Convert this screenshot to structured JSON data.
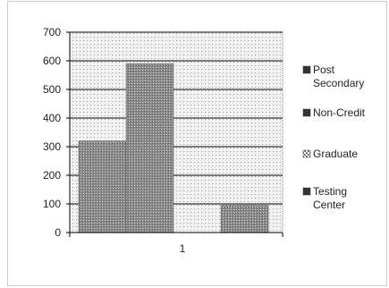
{
  "chart_data": {
    "type": "bar",
    "categories": [
      "1"
    ],
    "series": [
      {
        "name": "Post Secondary",
        "values": [
          320
        ]
      },
      {
        "name": "Non-Credit",
        "values": [
          590
        ]
      },
      {
        "name": "Graduate",
        "values": [
          0
        ]
      },
      {
        "name": "Testing Center",
        "values": [
          95
        ]
      }
    ],
    "title": "",
    "xlabel": "",
    "ylabel": "",
    "ylim": [
      0,
      700
    ],
    "yticks": [
      "0",
      "100",
      "200",
      "300",
      "400",
      "500",
      "600",
      "700"
    ],
    "grid": true,
    "legend_position": "right",
    "legend_labels": [
      [
        "Post",
        "Secondary"
      ],
      [
        "Non-Credit"
      ],
      [
        "Graduate"
      ],
      [
        "Testing",
        "Center"
      ]
    ],
    "colors": {
      "bar_fill": "#8c8c8c",
      "plot_background": "#ebebeb",
      "gridline": "#000000",
      "axis": "#000000"
    }
  }
}
